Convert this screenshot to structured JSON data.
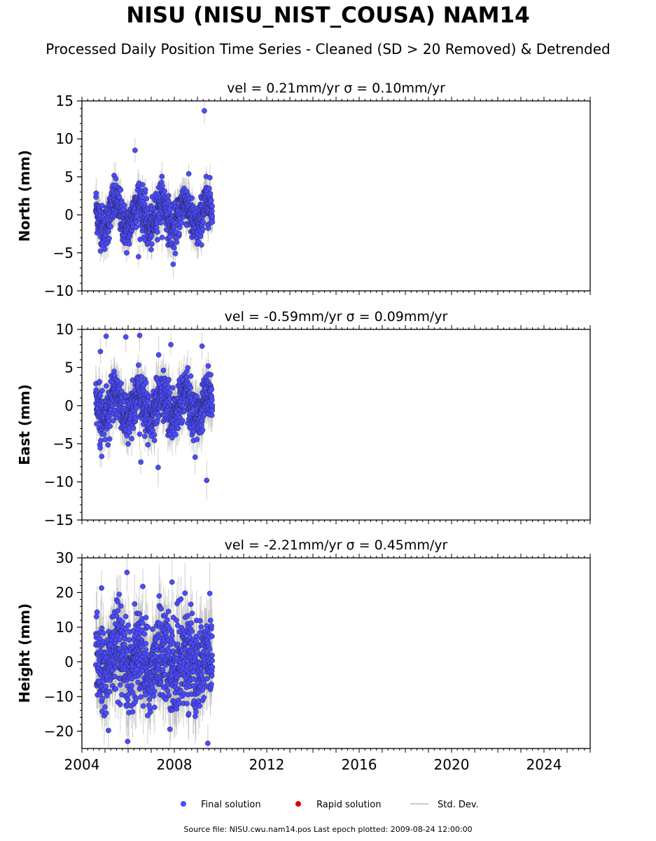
{
  "title": "NISU (NISU_NIST_COUSA) NAM14",
  "subtitle": "Processed Daily Position Time Series - Cleaned (SD > 20 Removed) & Detrended",
  "footer": "Source file: NISU.cwu.nam14.pos  Last epoch plotted: 2009-08-24 12:00:00",
  "colors": {
    "final": "#4b4bff",
    "rapid": "#e00000",
    "stddev": "#bbbbbb"
  },
  "chart_data": [
    {
      "type": "scatter",
      "panel": "north",
      "title": "vel = 0.21mm/yr   σ = 0.10mm/yr",
      "ylabel": "North (mm)",
      "xlabel": "",
      "xlim": [
        2004.0,
        2026.0
      ],
      "ylim": [
        -10,
        15
      ],
      "yticks": [
        -10,
        -5,
        0,
        5,
        10,
        15
      ],
      "xticks": [
        2004,
        2008,
        2012,
        2016,
        2020,
        2024
      ],
      "data_span": [
        2004.6,
        2009.65
      ],
      "seasonal_amplitude": 1.8,
      "noise_sd": 1.4,
      "std_dev_sd": 1.7,
      "outliers": [
        {
          "x": 2006.3,
          "y": 8.5
        },
        {
          "x": 2009.3,
          "y": 13.7
        },
        {
          "x": 2007.95,
          "y": -6.5
        },
        {
          "x": 2006.45,
          "y": -5.5
        }
      ]
    },
    {
      "type": "scatter",
      "panel": "east",
      "title": "vel = -0.59mm/yr   σ = 0.09mm/yr",
      "ylabel": "East (mm)",
      "xlabel": "",
      "xlim": [
        2004.0,
        2026.0
      ],
      "ylim": [
        -15,
        10
      ],
      "yticks": [
        -15,
        -10,
        -5,
        0,
        5,
        10
      ],
      "xticks": [
        2004,
        2008,
        2012,
        2016,
        2020,
        2024
      ],
      "data_span": [
        2004.6,
        2009.65
      ],
      "seasonal_amplitude": 1.5,
      "noise_sd": 1.6,
      "std_dev_sd": 2.0,
      "outliers": [
        {
          "x": 2004.8,
          "y": 7.1
        },
        {
          "x": 2005.05,
          "y": 9.1
        },
        {
          "x": 2005.9,
          "y": 9.0
        },
        {
          "x": 2006.5,
          "y": 9.2
        },
        {
          "x": 2007.85,
          "y": 8.0
        },
        {
          "x": 2009.2,
          "y": 7.8
        },
        {
          "x": 2009.4,
          "y": -9.8
        },
        {
          "x": 2006.55,
          "y": -7.4
        },
        {
          "x": 2007.3,
          "y": -8.1
        }
      ]
    },
    {
      "type": "scatter",
      "panel": "height",
      "title": "vel = -2.21mm/yr   σ = 0.45mm/yr",
      "ylabel": "Height (mm)",
      "xlabel": "",
      "xlim": [
        2004.0,
        2026.0
      ],
      "ylim": [
        -25,
        30
      ],
      "yticks": [
        -20,
        -10,
        0,
        10,
        20,
        30
      ],
      "xticks": [
        2004,
        2008,
        2012,
        2016,
        2020,
        2024
      ],
      "data_span": [
        2004.6,
        2009.65
      ],
      "seasonal_amplitude": 3.5,
      "noise_sd": 6.5,
      "std_dev_sd": 7.0,
      "outliers": [
        {
          "x": 2005.95,
          "y": 25.8
        },
        {
          "x": 2007.9,
          "y": 23.0
        },
        {
          "x": 2004.85,
          "y": 21.3
        },
        {
          "x": 2005.15,
          "y": -19.8
        },
        {
          "x": 2009.45,
          "y": -23.5
        }
      ]
    }
  ],
  "legend": {
    "final_label": "Final solution",
    "rapid_label": "Rapid solution",
    "stddev_label": "Std. Dev."
  }
}
